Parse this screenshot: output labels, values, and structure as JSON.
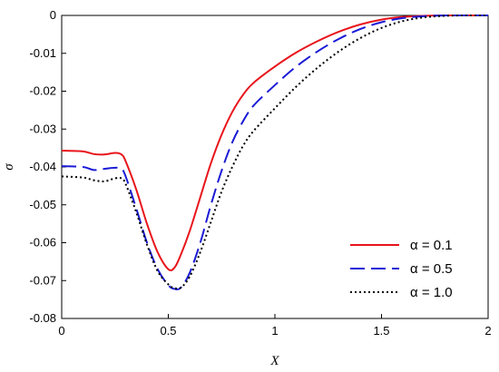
{
  "chart_data": {
    "type": "line",
    "title": "",
    "xlabel": "X",
    "ylabel": "σ",
    "xlim": [
      0,
      2
    ],
    "ylim": [
      -0.08,
      0
    ],
    "xticks": [
      0,
      0.5,
      1,
      1.5,
      2
    ],
    "xtick_labels": [
      "0",
      "0.5",
      "1",
      "1.5",
      "2"
    ],
    "yticks": [
      0,
      -0.01,
      -0.02,
      -0.03,
      -0.04,
      -0.05,
      -0.06,
      -0.07,
      -0.08
    ],
    "ytick_labels": [
      "0",
      "-0.01",
      "-0.02",
      "-0.03",
      "-0.04",
      "-0.05",
      "-0.06",
      "-0.07",
      "-0.08"
    ],
    "grid": false,
    "legend_position": "bottom-right",
    "series": [
      {
        "name": "α = 0.1",
        "color": "#e8141b",
        "style": "solid",
        "x": [
          0,
          0.1,
          0.15,
          0.2,
          0.25,
          0.28,
          0.3,
          0.35,
          0.4,
          0.45,
          0.5,
          0.53,
          0.56,
          0.6,
          0.65,
          0.7,
          0.75,
          0.8,
          0.85,
          0.9,
          1.0,
          1.1,
          1.2,
          1.3,
          1.4,
          1.5,
          1.6,
          1.7,
          1.8,
          1.9,
          2.0
        ],
        "y": [
          -0.0357,
          -0.0359,
          -0.0366,
          -0.0367,
          -0.0363,
          -0.0367,
          -0.0385,
          -0.046,
          -0.055,
          -0.0625,
          -0.067,
          -0.0665,
          -0.063,
          -0.057,
          -0.048,
          -0.039,
          -0.0315,
          -0.0255,
          -0.021,
          -0.0178,
          -0.0135,
          -0.0098,
          -0.0068,
          -0.0043,
          -0.0024,
          -0.0011,
          -0.0004,
          -0.0001,
          0,
          0,
          0
        ]
      },
      {
        "name": "α = 0.5",
        "color": "#1a1ad6",
        "style": "dashed",
        "x": [
          0,
          0.1,
          0.15,
          0.2,
          0.25,
          0.28,
          0.3,
          0.35,
          0.4,
          0.45,
          0.5,
          0.53,
          0.56,
          0.6,
          0.65,
          0.7,
          0.75,
          0.8,
          0.85,
          0.9,
          1.0,
          1.1,
          1.2,
          1.3,
          1.4,
          1.5,
          1.6,
          1.7,
          1.8,
          1.9,
          2.0
        ],
        "y": [
          -0.0398,
          -0.04,
          -0.0408,
          -0.0405,
          -0.0402,
          -0.0405,
          -0.0425,
          -0.051,
          -0.06,
          -0.067,
          -0.0712,
          -0.0722,
          -0.0718,
          -0.068,
          -0.06,
          -0.05,
          -0.041,
          -0.0335,
          -0.028,
          -0.0238,
          -0.0184,
          -0.0135,
          -0.0095,
          -0.0062,
          -0.0036,
          -0.0018,
          -0.0007,
          -0.0002,
          0,
          0,
          0
        ]
      },
      {
        "name": "α = 1.0",
        "color": "#000000",
        "style": "dotted",
        "x": [
          0,
          0.1,
          0.15,
          0.2,
          0.25,
          0.28,
          0.3,
          0.35,
          0.4,
          0.45,
          0.5,
          0.53,
          0.56,
          0.6,
          0.65,
          0.7,
          0.75,
          0.8,
          0.85,
          0.9,
          1.0,
          1.1,
          1.2,
          1.3,
          1.4,
          1.5,
          1.6,
          1.7,
          1.8,
          1.9,
          2.0
        ],
        "y": [
          -0.0425,
          -0.0428,
          -0.0435,
          -0.0438,
          -0.043,
          -0.043,
          -0.0445,
          -0.052,
          -0.0605,
          -0.0675,
          -0.071,
          -0.072,
          -0.0718,
          -0.069,
          -0.0625,
          -0.0545,
          -0.0465,
          -0.04,
          -0.0345,
          -0.0305,
          -0.0245,
          -0.0188,
          -0.0138,
          -0.0095,
          -0.006,
          -0.0033,
          -0.0015,
          -0.0005,
          -0.0001,
          0,
          0
        ]
      }
    ]
  }
}
